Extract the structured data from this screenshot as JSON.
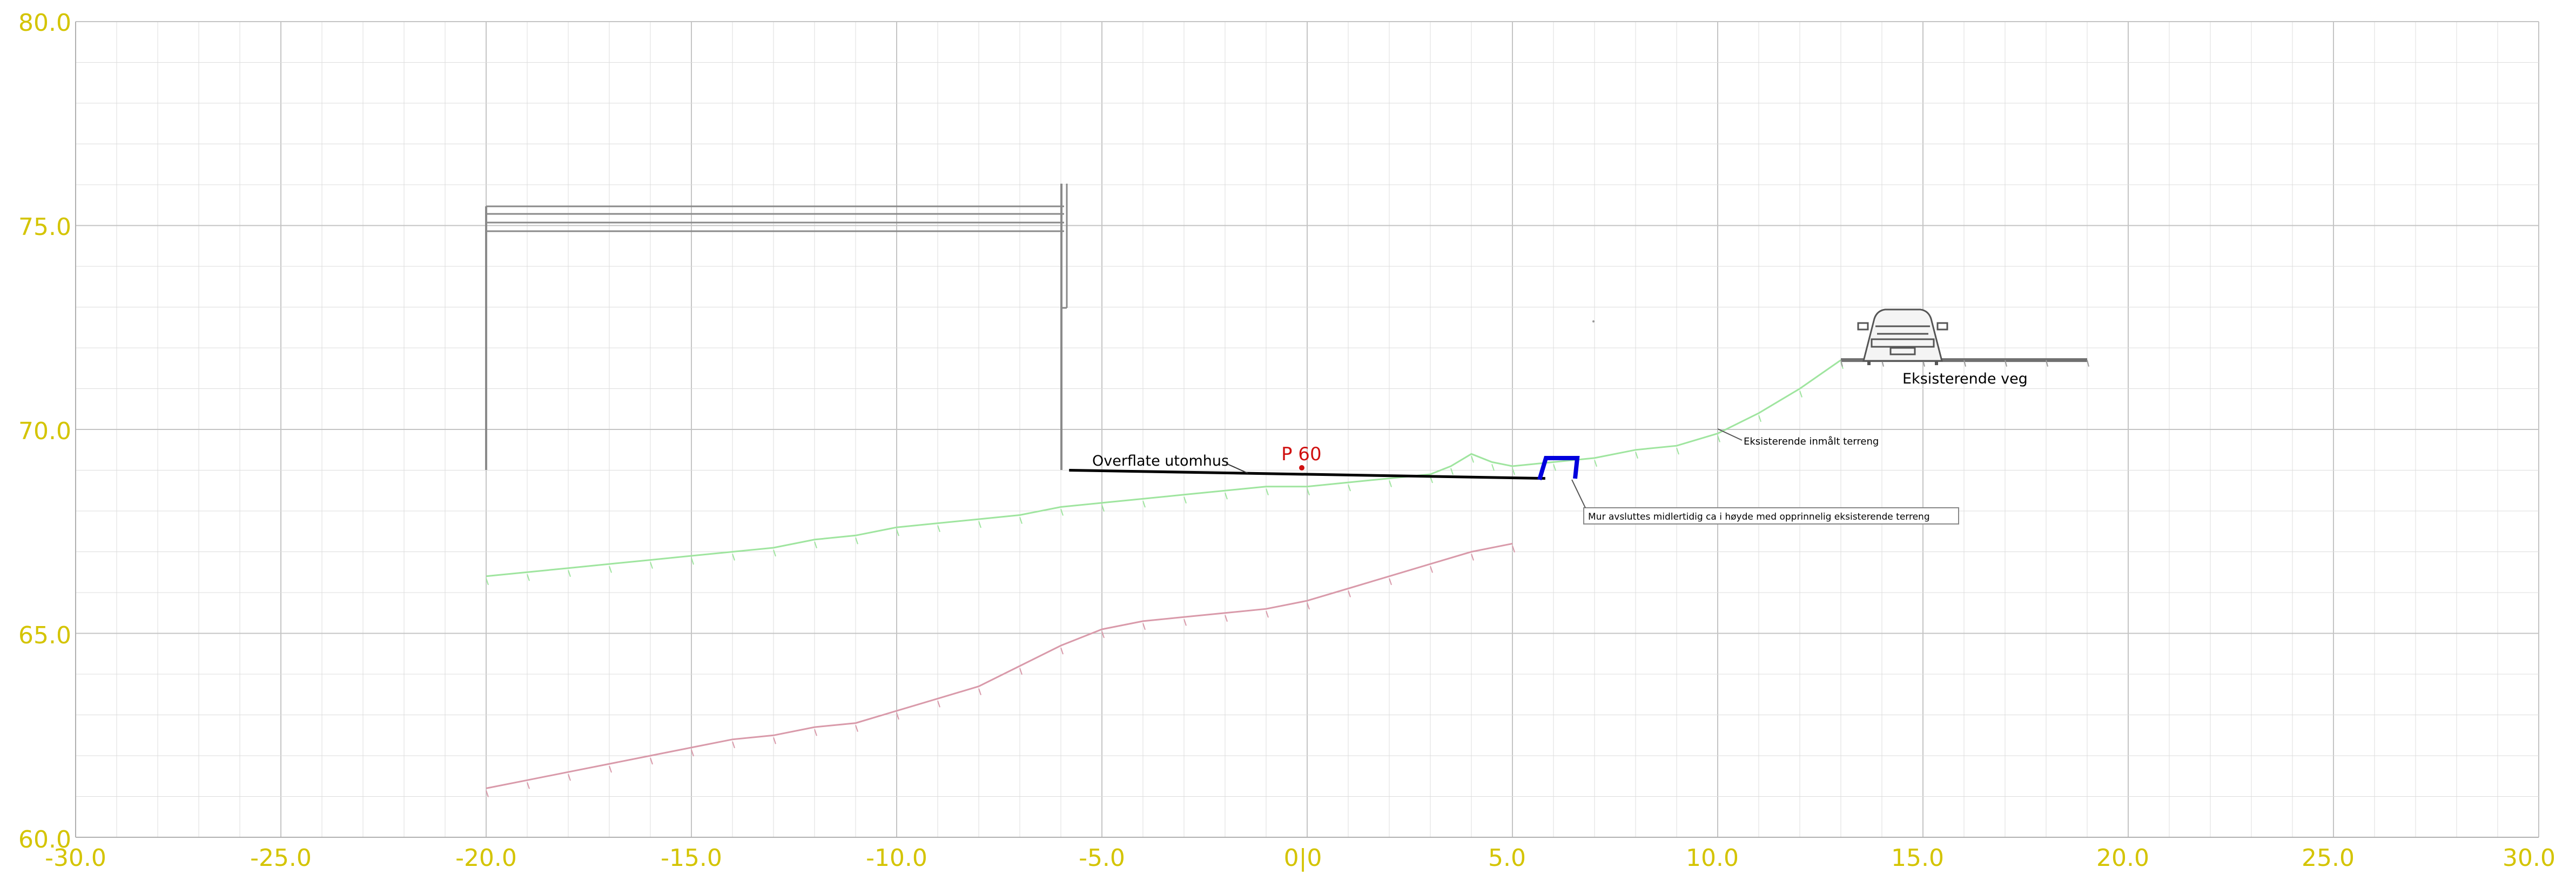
{
  "drawing": {
    "kind": "terrain cross-section",
    "x_range": [
      -30,
      30
    ],
    "y_range": [
      60,
      80
    ],
    "x_ticks": [
      "-30.0",
      "-25.0",
      "-20.0",
      "-15.0",
      "-10.0",
      "-5.0",
      "0|0",
      "5.0",
      "10.0",
      "15.0",
      "20.0",
      "25.0",
      "30.0"
    ],
    "y_ticks": [
      "80.0",
      "75.0",
      "70.0",
      "65.0",
      "60.0"
    ],
    "labels": {
      "surface": "Overflate utomhus",
      "profile_marker": "P 60",
      "road": "Eksisterende veg",
      "measured_terrain": "Eksisterende inmålt terreng",
      "wall_note": "Mur avsluttes midlertidig ca i høyde med opprinnelig eksisterende terreng"
    },
    "colors": {
      "tick_text": "#d4c400",
      "grid": "#dcdcdc",
      "existing_terrain": "#9fe59f",
      "lower_line": "#d99aaa",
      "wall": "#0000dd",
      "marker": "#d01010"
    },
    "existing_terrain": [
      [
        -20,
        66.4
      ],
      [
        -19,
        66.5
      ],
      [
        -18,
        66.6
      ],
      [
        -17,
        66.7
      ],
      [
        -16,
        66.8
      ],
      [
        -15,
        66.9
      ],
      [
        -14,
        67.0
      ],
      [
        -13,
        67.1
      ],
      [
        -12,
        67.3
      ],
      [
        -11,
        67.4
      ],
      [
        -10,
        67.6
      ],
      [
        -9,
        67.7
      ],
      [
        -8,
        67.8
      ],
      [
        -7,
        67.9
      ],
      [
        -6,
        68.1
      ],
      [
        -5,
        68.2
      ],
      [
        -4,
        68.3
      ],
      [
        -3,
        68.4
      ],
      [
        -2,
        68.5
      ],
      [
        -1,
        68.6
      ],
      [
        0,
        68.6
      ],
      [
        1,
        68.7
      ],
      [
        2,
        68.8
      ],
      [
        3,
        68.9
      ],
      [
        3.5,
        69.1
      ],
      [
        4,
        69.4
      ],
      [
        4.5,
        69.2
      ],
      [
        5,
        69.1
      ],
      [
        6,
        69.2
      ],
      [
        7,
        69.3
      ],
      [
        8,
        69.5
      ],
      [
        9,
        69.6
      ],
      [
        10,
        69.9
      ],
      [
        11,
        70.4
      ],
      [
        12,
        71.0
      ],
      [
        13,
        71.7
      ]
    ],
    "lower_line": [
      [
        -20,
        61.2
      ],
      [
        -19,
        61.4
      ],
      [
        -18,
        61.6
      ],
      [
        -17,
        61.8
      ],
      [
        -16,
        62.0
      ],
      [
        -15,
        62.2
      ],
      [
        -14,
        62.4
      ],
      [
        -13,
        62.5
      ],
      [
        -12,
        62.7
      ],
      [
        -11,
        62.8
      ],
      [
        -10,
        63.1
      ],
      [
        -9,
        63.4
      ],
      [
        -8,
        63.7
      ],
      [
        -7,
        64.2
      ],
      [
        -6,
        64.7
      ],
      [
        -5,
        65.1
      ],
      [
        -4,
        65.3
      ],
      [
        -3,
        65.4
      ],
      [
        -2,
        65.5
      ],
      [
        -1,
        65.6
      ],
      [
        0,
        65.8
      ],
      [
        1,
        66.1
      ],
      [
        2,
        66.4
      ],
      [
        3,
        66.7
      ],
      [
        4,
        67.0
      ],
      [
        5,
        67.2
      ]
    ],
    "surface_line": [
      [
        -5.8,
        69.0
      ],
      [
        5.8,
        68.8
      ]
    ],
    "road": [
      [
        13,
        71.7
      ],
      [
        19,
        71.7
      ]
    ]
  }
}
